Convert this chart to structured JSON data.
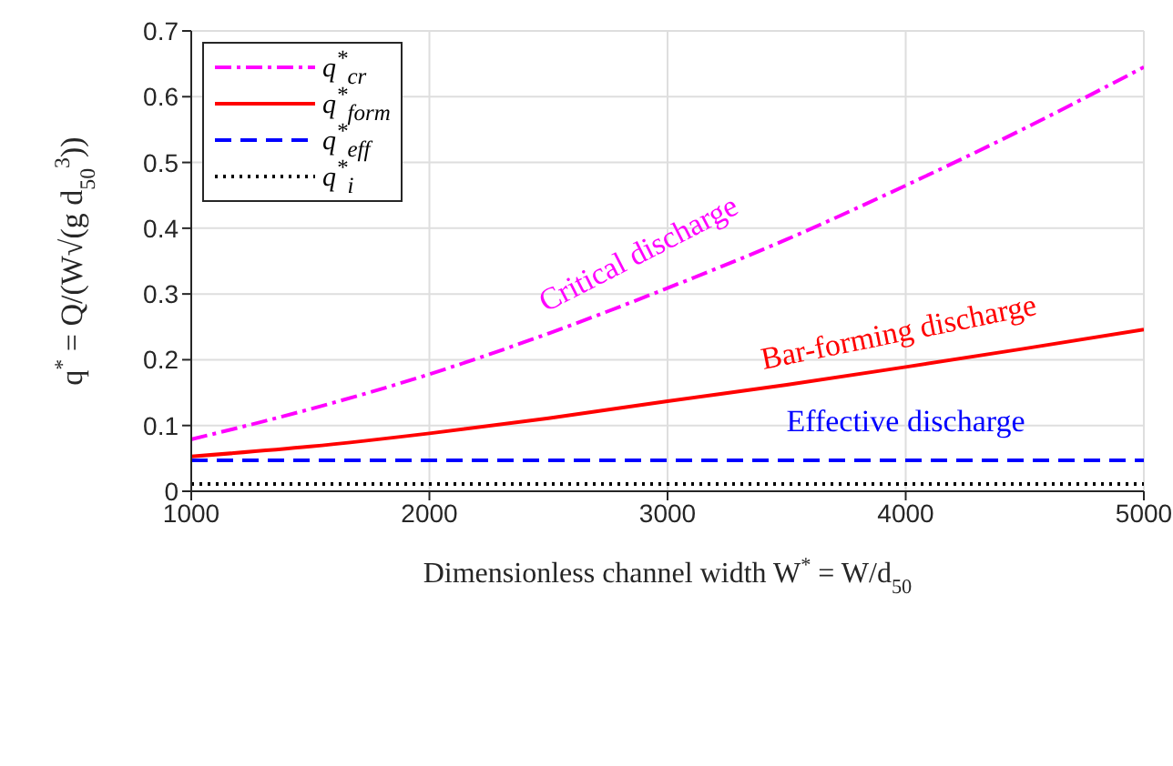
{
  "chart_data": {
    "type": "line",
    "xlabel": "Dimensionless channel width W$^{*}$ = W/d$_{50}$",
    "ylabel": "q$^{*}$ = Q/(W√(g d$_{50}$$^{3}$))",
    "x": [
      1000,
      1500,
      2000,
      2500,
      3000,
      3500,
      4000,
      4500,
      5000
    ],
    "xlim": [
      1000,
      5000
    ],
    "xticks": [
      1000,
      2000,
      3000,
      4000,
      5000
    ],
    "ylim": [
      0,
      0.7
    ],
    "yticks": [
      0,
      0.1,
      0.2,
      0.3,
      0.4,
      0.5,
      0.6,
      0.7
    ],
    "grid": true,
    "legend": "top left",
    "marker": "none",
    "series": [
      {
        "name": "q$^{*}$$_{cr}$",
        "color": "#ff00ff",
        "line_style": "dashdot",
        "values": [
          0.079,
          0.125,
          0.178,
          0.24,
          0.309,
          0.383,
          0.465,
          0.552,
          0.645
        ]
      },
      {
        "name": "q$^{*}$$_{form}$",
        "color": "#ff0000",
        "line_style": "solid",
        "values": [
          0.053,
          0.068,
          0.088,
          0.111,
          0.137,
          0.162,
          0.189,
          0.217,
          0.246
        ]
      },
      {
        "name": "q$^{*}$$_{eff}$",
        "color": "#0000ff",
        "line_style": "dashed",
        "values": [
          0.047,
          0.047,
          0.047,
          0.047,
          0.047,
          0.047,
          0.047,
          0.047,
          0.047
        ]
      },
      {
        "name": "q$^{*}$$_{i}$",
        "color": "#000000",
        "line_style": "dotted",
        "values": [
          0.011,
          0.011,
          0.011,
          0.011,
          0.011,
          0.011,
          0.011,
          0.011,
          0.011
        ]
      }
    ],
    "annotations": [
      "Critical discharge",
      "Bar-forming discharge",
      "Effective discharge"
    ]
  }
}
